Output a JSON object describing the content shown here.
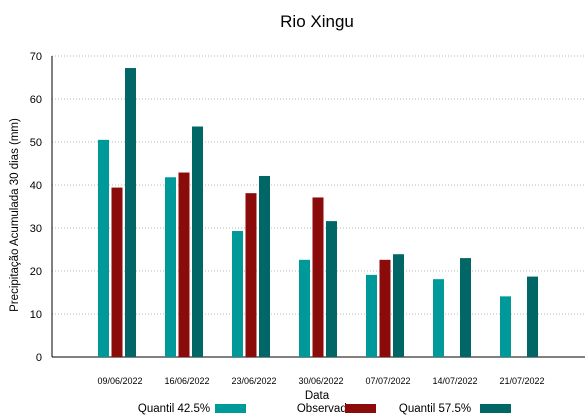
{
  "chart_data": {
    "type": "bar",
    "title": "Rio Xingu",
    "xlabel": "Data",
    "ylabel": "Precipitação Acumulada 30 dias (mm)",
    "ylim": [
      0,
      70
    ],
    "yticks": [
      "0",
      "10",
      "20",
      "30",
      "40",
      "50",
      "60",
      "70"
    ],
    "grid": true,
    "legend_position": "bottom",
    "categories": [
      "09/06/2022",
      "16/06/2022",
      "23/06/2022",
      "30/06/2022",
      "07/07/2022",
      "14/07/2022",
      "21/07/2022"
    ],
    "series": [
      {
        "name": "Quantil 42.5%",
        "color": "#009999",
        "values": [
          50.5,
          41.8,
          29.3,
          22.6,
          19.1,
          18.1,
          14.1
        ]
      },
      {
        "name": "Observado",
        "color": "#8b0b0b",
        "values": [
          39.4,
          42.9,
          38.1,
          37.1,
          22.6,
          null,
          null
        ]
      },
      {
        "name": "Quantil 57.5%",
        "color": "#006666",
        "values": [
          67.2,
          53.6,
          42.1,
          31.6,
          23.9,
          23.0,
          18.7
        ]
      }
    ]
  }
}
